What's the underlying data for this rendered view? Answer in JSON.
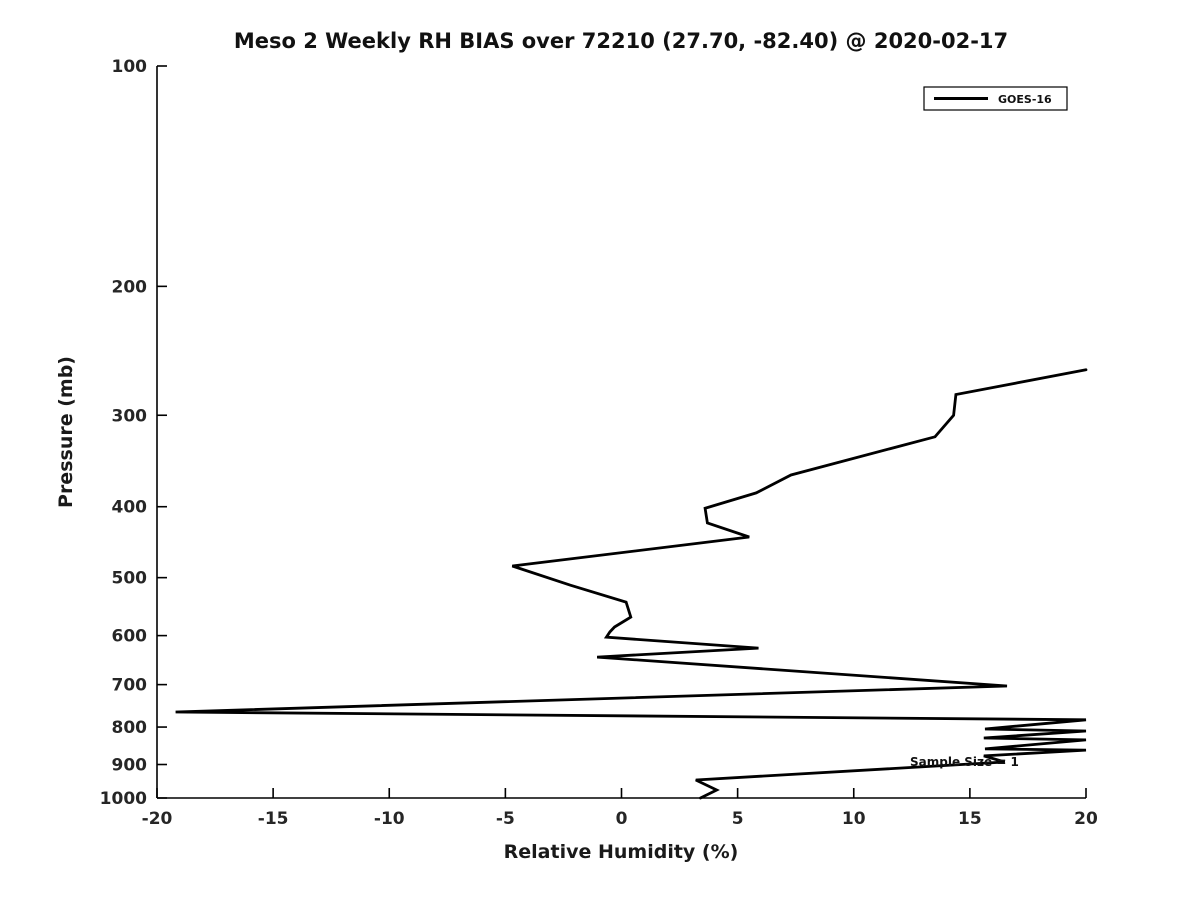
{
  "title": "Meso 2 Weekly RH BIAS over 72210 (27.70, -82.40) @ 2020-02-17",
  "legend": {
    "position": "top-right",
    "entries": [
      {
        "label": "GOES-16",
        "color": "#000000",
        "line_width": 3
      }
    ]
  },
  "annotation": {
    "text": "Sample Size = 1"
  },
  "chart_data": {
    "type": "line",
    "title": "Meso 2 Weekly RH BIAS over 72210 (27.70, -82.40) @ 2020-02-17",
    "xlabel": "Relative Humidity (%)",
    "ylabel": "Pressure (mb)",
    "xlim": [
      -20,
      20
    ],
    "ylim": [
      100,
      1000
    ],
    "y_scale": "log",
    "y_inverted": true,
    "grid": false,
    "x_ticks": [
      -20,
      -15,
      -10,
      -5,
      0,
      5,
      10,
      15,
      20
    ],
    "y_ticks": [
      100,
      200,
      300,
      400,
      500,
      600,
      700,
      800,
      900,
      1000
    ],
    "legend_position": "top-right",
    "series": [
      {
        "name": "GOES-16",
        "color": "#000000",
        "points_format": [
          "rh_bias_percent",
          "pressure_mb"
        ],
        "points": [
          [
            20.0,
            260
          ],
          [
            14.4,
            281
          ],
          [
            14.3,
            300
          ],
          [
            13.5,
            321
          ],
          [
            7.3,
            362
          ],
          [
            5.8,
            383
          ],
          [
            3.6,
            402
          ],
          [
            3.7,
            421
          ],
          [
            5.5,
            440
          ],
          [
            -4.7,
            482
          ],
          [
            -2.2,
            512
          ],
          [
            0.2,
            540
          ],
          [
            0.4,
            566
          ],
          [
            -0.3,
            584
          ],
          [
            -0.5,
            593
          ],
          [
            -0.65,
            603
          ],
          [
            5.9,
            624
          ],
          [
            -1.05,
            642
          ],
          [
            16.6,
            703
          ],
          [
            -19.2,
            763
          ],
          [
            20.0,
            782
          ],
          [
            15.65,
            805
          ],
          [
            20.0,
            810
          ],
          [
            15.6,
            828
          ],
          [
            20.0,
            833
          ],
          [
            15.65,
            857
          ],
          [
            20.0,
            860
          ],
          [
            15.6,
            876
          ],
          [
            16.5,
            893
          ],
          [
            3.2,
            945
          ],
          [
            4.1,
            975
          ],
          [
            3.4,
            1000
          ]
        ]
      }
    ],
    "annotations": [
      {
        "text": "Sample Size = 1",
        "anchor_rh": 12.4,
        "anchor_pressure_mb": 902
      }
    ]
  }
}
